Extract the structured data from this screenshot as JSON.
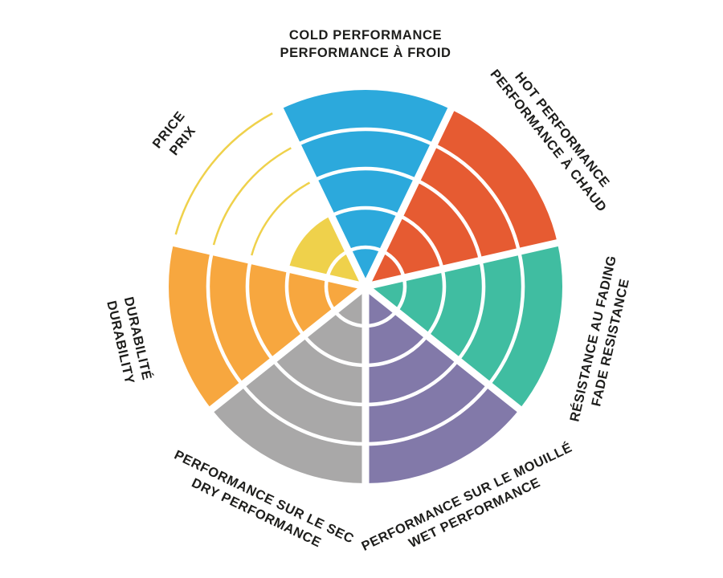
{
  "page": {
    "background": "#ffffff",
    "text_color": "#1d1d1b"
  },
  "chart_data": {
    "type": "polar-sector-rating",
    "description": "Seven-spoke circular rating wheel, each sector filled to a rating out of 5 rings; unfilled rings of the price sector shown as thin outline arcs",
    "rings_total": 5,
    "grid": "concentric ring dividers, white",
    "legend_position": "labels around wheel, tangentially rotated, bilingual",
    "sectors": [
      {
        "id": "cold-performance",
        "lines": [
          "COLD PERFORMANCE",
          "PERFORMANCE À FROID"
        ],
        "value": 5,
        "color": "#2CA9DC"
      },
      {
        "id": "hot-performance",
        "lines": [
          "HOT PERFORMANCE",
          "PERFORMANCE À CHAUD"
        ],
        "value": 5,
        "color": "#E65B32"
      },
      {
        "id": "fade-resistance",
        "lines": [
          "RÉSISTANCE AU FADING",
          "FADE RESISTANCE"
        ],
        "value": 5,
        "color": "#40BDA1"
      },
      {
        "id": "wet-performance",
        "lines": [
          "PERFORMANCE SUR LE MOUILLÉ",
          "WET PERFORMANCE"
        ],
        "value": 5,
        "color": "#8279A9"
      },
      {
        "id": "dry-performance",
        "lines": [
          "PERFORMANCE SUR LE SEC",
          "DRY PERFORMANCE"
        ],
        "value": 5,
        "color": "#A9A8A8"
      },
      {
        "id": "durability",
        "lines": [
          "DURABILITÉ",
          "DURABILITY"
        ],
        "value": 5,
        "color": "#F7A73F"
      },
      {
        "id": "price",
        "lines": [
          "PRICE",
          "PRIX"
        ],
        "value": 2,
        "color": "#EFD14B"
      }
    ]
  }
}
